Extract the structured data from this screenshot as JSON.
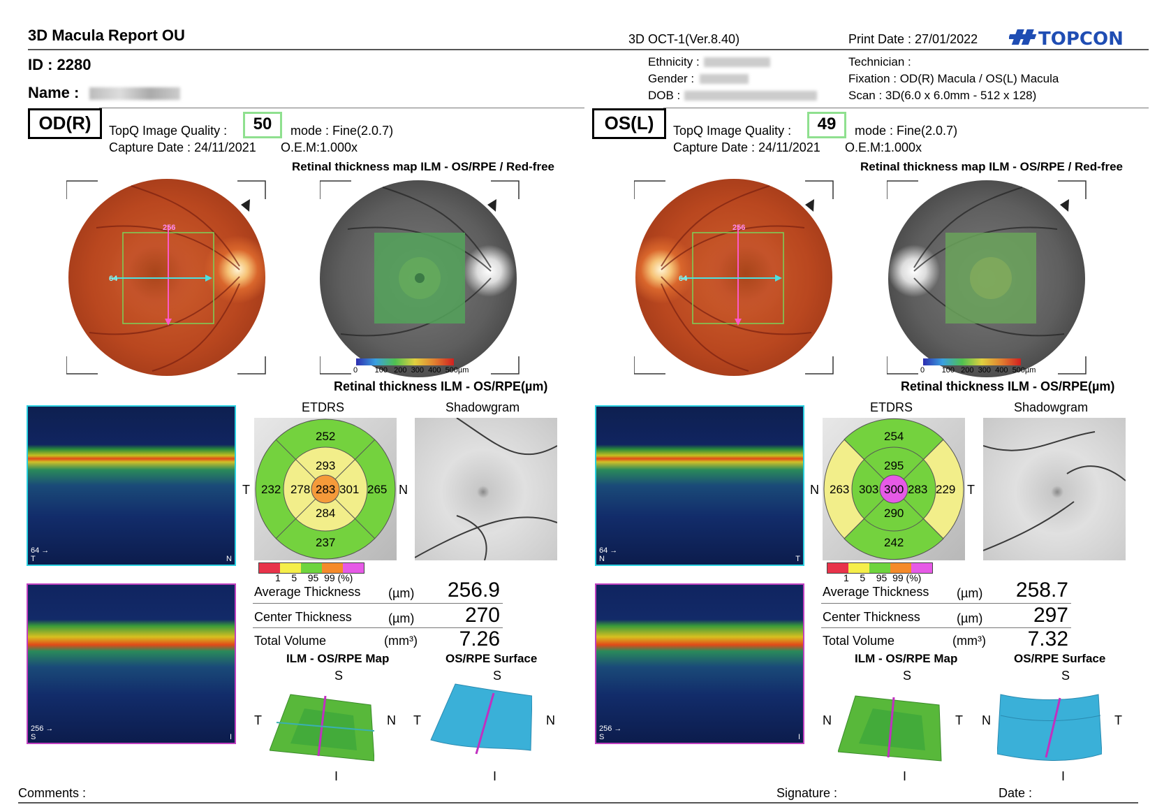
{
  "header": {
    "title": "3D Macula Report OU",
    "device": "3D OCT-1(Ver.8.40)",
    "print_date": "Print Date : 27/01/2022",
    "brand": "TOPCON",
    "id_line": "ID : 2280",
    "name_label": "Name :",
    "ethnicity_label": "Ethnicity :",
    "gender_label": "Gender :",
    "dob_label": "DOB :",
    "technician": "Technician :",
    "fixation": "Fixation : OD(R) Macula / OS(L) Macula",
    "scan": "Scan : 3D(6.0 x 6.0mm - 512 x 128)"
  },
  "eyes": [
    {
      "eye": "OD(R)",
      "quality_label": "TopQ Image Quality :",
      "quality": "50",
      "mode": "mode : Fine(2.0.7)",
      "capture": "Capture Date : 24/11/2021",
      "oem": "O.E.M:1.000x",
      "map_title": "Retinal thickness map ILM - OS/RPE / Red-free",
      "colorbar_labels": [
        "0",
        "100",
        "200",
        "300",
        "400",
        "500µm"
      ],
      "thickness_title": "Retinal thickness ILM - OS/RPE(µm)",
      "etdrs_title": "ETDRS",
      "shadow_title": "Shadowgram",
      "etdrs": {
        "center": "283",
        "inner_s": "293",
        "inner_i": "284",
        "inner_t": "278",
        "inner_n": "301",
        "outer_s": "252",
        "outer_i": "237",
        "outer_t": "232",
        "outer_n": "265",
        "left_side": "T",
        "right_side": "N"
      },
      "pct_labels": [
        "1",
        "5",
        "95",
        "99",
        "(%)"
      ],
      "metrics": [
        {
          "label": "Average Thickness",
          "unit": "(µm)",
          "value": "256.9"
        },
        {
          "label": "Center Thickness",
          "unit": "(µm)",
          "value": "270"
        },
        {
          "label": "Total Volume",
          "unit": "(mm³)",
          "value": "7.26"
        }
      ],
      "map3d_title": "ILM - OS/RPE Map",
      "surface_title": "OS/RPE Surface",
      "map3d_dirs": {
        "top": "S",
        "left": "T",
        "right": "N",
        "bottom": "I"
      },
      "surface_dirs": {
        "top": "S",
        "left": "T",
        "right": "N",
        "bottom": "I"
      },
      "fundus_h_label": "64",
      "fundus_v_label": "256",
      "bscan1": {
        "marker": "64",
        "left_label": "T",
        "right_label": "N"
      },
      "bscan2": {
        "marker": "256",
        "left_label": "S",
        "right_label": "I"
      }
    },
    {
      "eye": "OS(L)",
      "quality_label": "TopQ Image Quality :",
      "quality": "49",
      "mode": "mode : Fine(2.0.7)",
      "capture": "Capture Date : 24/11/2021",
      "oem": "O.E.M:1.000x",
      "map_title": "Retinal thickness map ILM - OS/RPE / Red-free",
      "colorbar_labels": [
        "0",
        "100",
        "200",
        "300",
        "400",
        "500µm"
      ],
      "thickness_title": "Retinal thickness ILM - OS/RPE(µm)",
      "etdrs_title": "ETDRS",
      "shadow_title": "Shadowgram",
      "etdrs": {
        "center": "300",
        "inner_s": "295",
        "inner_i": "290",
        "inner_t": "303",
        "inner_n": "283",
        "outer_s": "254",
        "outer_i": "242",
        "outer_t": "263",
        "outer_n": "229",
        "left_side": "N",
        "right_side": "T"
      },
      "pct_labels": [
        "1",
        "5",
        "95",
        "99",
        "(%)"
      ],
      "metrics": [
        {
          "label": "Average Thickness",
          "unit": "(µm)",
          "value": "258.7"
        },
        {
          "label": "Center Thickness",
          "unit": "(µm)",
          "value": "297"
        },
        {
          "label": "Total Volume",
          "unit": "(mm³)",
          "value": "7.32"
        }
      ],
      "map3d_title": "ILM - OS/RPE Map",
      "surface_title": "OS/RPE Surface",
      "map3d_dirs": {
        "top": "S",
        "left": "N",
        "right": "T",
        "bottom": "I"
      },
      "surface_dirs": {
        "top": "S",
        "left": "N",
        "right": "T",
        "bottom": "I"
      },
      "fundus_h_label": "64",
      "fundus_v_label": "256",
      "bscan1": {
        "marker": "64",
        "left_label": "N",
        "right_label": "T"
      },
      "bscan2": {
        "marker": "256",
        "left_label": "S",
        "right_label": "I"
      }
    }
  ],
  "footer": {
    "comments": "Comments :",
    "signature": "Signature :",
    "date": "Date :"
  }
}
